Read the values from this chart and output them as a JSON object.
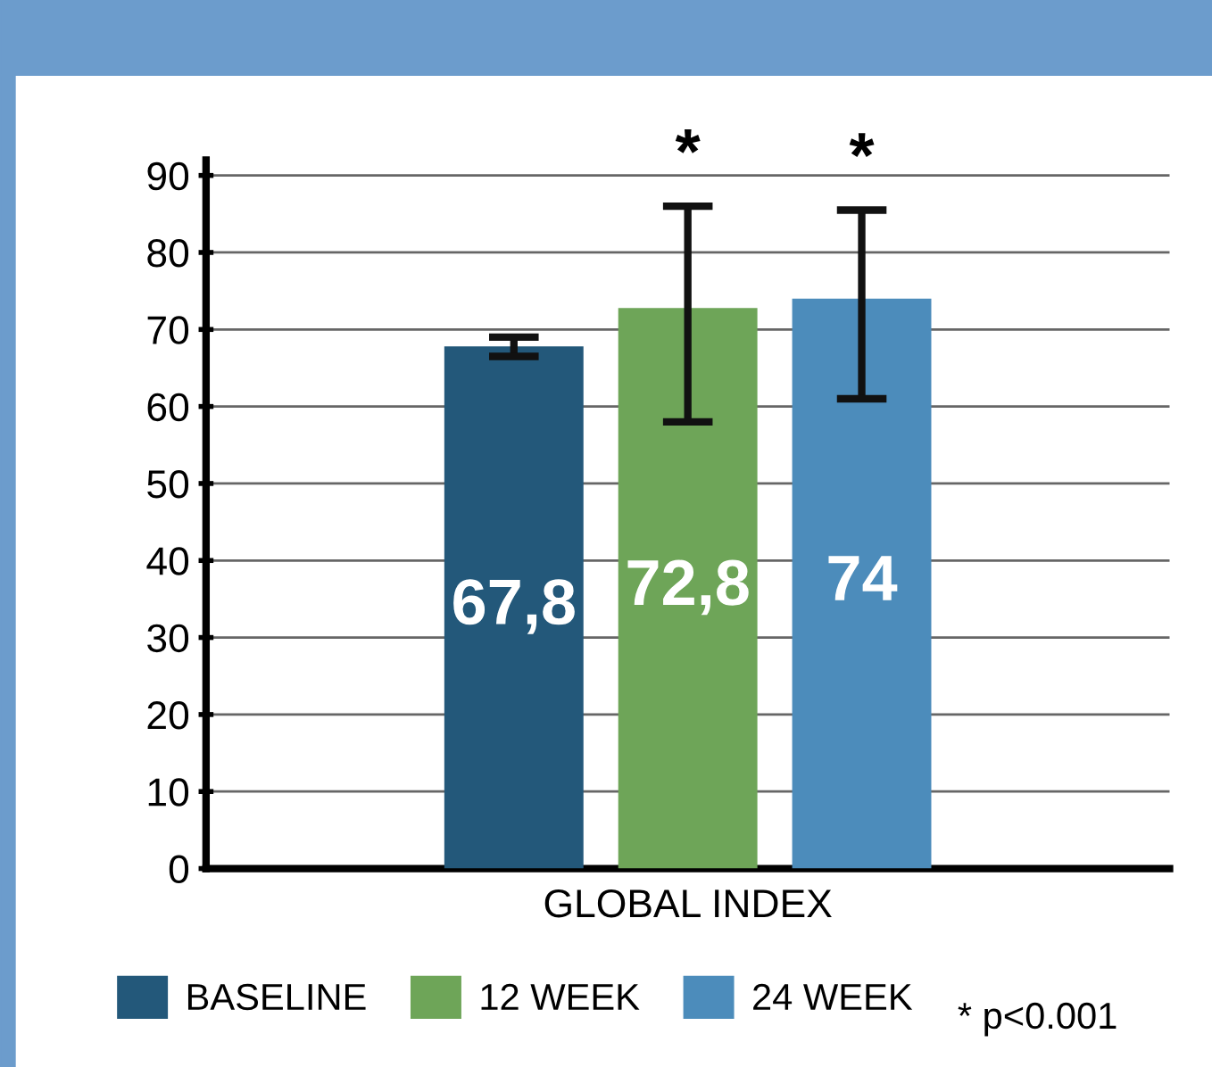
{
  "chart_data": {
    "type": "bar",
    "categories": [
      "GLOBAL INDEX"
    ],
    "series": [
      {
        "name": "BASELINE",
        "color": "#23587a",
        "values": [
          67.8
        ],
        "errors": [
          [
            66.5,
            69
          ]
        ],
        "value_labels": [
          "67,8"
        ]
      },
      {
        "name": "12 WEEK",
        "color": "#6ea558",
        "values": [
          72.8
        ],
        "errors": [
          [
            58,
            86
          ]
        ],
        "value_labels": [
          "72,8"
        ]
      },
      {
        "name": "24 WEEK",
        "color": "#4c8cbb",
        "values": [
          74
        ],
        "errors": [
          [
            61,
            85.5
          ]
        ],
        "value_labels": [
          "74"
        ]
      }
    ],
    "annotations": [
      "*",
      "*",
      "* p<0.001"
    ],
    "ylim": [
      0,
      92
    ],
    "yticks": [
      0,
      10,
      20,
      30,
      40,
      50,
      60,
      70,
      80,
      90
    ],
    "grid": "y",
    "legend": "bottom"
  }
}
